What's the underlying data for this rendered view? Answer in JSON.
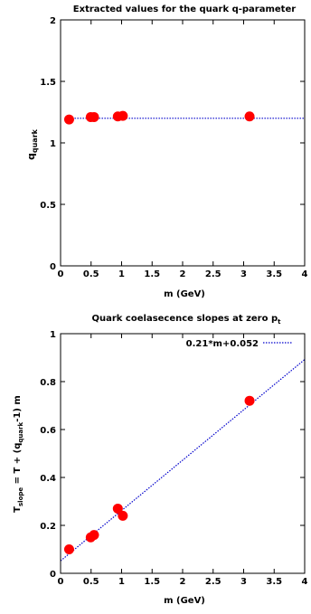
{
  "chart_data": [
    {
      "type": "scatter",
      "title": "Extracted values for the quark q-parameter",
      "xlabel": "m (GeV)",
      "ylabel_base": "q",
      "ylabel_sub": "quark",
      "xlim": [
        0,
        4
      ],
      "ylim": [
        0,
        2
      ],
      "xticks": [
        0,
        0.5,
        1,
        1.5,
        2,
        2.5,
        3,
        3.5,
        4
      ],
      "xtick_labels": [
        "0",
        "0.5",
        "1",
        "1.5",
        "2",
        "2.5",
        "3",
        "3.5",
        "4"
      ],
      "yticks": [
        0,
        0.5,
        1,
        1.5,
        2
      ],
      "ytick_labels": [
        "0",
        "0.5",
        "1",
        "1.5",
        "2"
      ],
      "grid": false,
      "points": [
        {
          "x": 0.14,
          "y": 1.19
        },
        {
          "x": 0.494,
          "y": 1.21
        },
        {
          "x": 0.548,
          "y": 1.21
        },
        {
          "x": 0.938,
          "y": 1.215
        },
        {
          "x": 1.02,
          "y": 1.22
        },
        {
          "x": 3.097,
          "y": 1.215
        }
      ],
      "reference_line": {
        "y": 1.2,
        "style": "dotted"
      },
      "colors": {
        "points": "#ff0000",
        "line": "#0000cc"
      }
    },
    {
      "type": "scatter",
      "title_base": "Quark coelasecence slopes at zero p",
      "title_sub": "t",
      "xlabel": "m (GeV)",
      "ylabel_parts": [
        "T",
        "slope",
        " = T + (q",
        "quark",
        "-1) m"
      ],
      "xlim": [
        0,
        4
      ],
      "ylim": [
        0,
        1
      ],
      "xticks": [
        0,
        0.5,
        1,
        1.5,
        2,
        2.5,
        3,
        3.5,
        4
      ],
      "xtick_labels": [
        "0",
        "0.5",
        "1",
        "1.5",
        "2",
        "2.5",
        "3",
        "3.5",
        "4"
      ],
      "yticks": [
        0,
        0.2,
        0.4,
        0.6,
        0.8,
        1
      ],
      "ytick_labels": [
        "0",
        "0.2",
        "0.4",
        "0.6",
        "0.8",
        "1"
      ],
      "grid": false,
      "legend": {
        "label": "0.21*m+0.052",
        "placement": "top-right"
      },
      "points": [
        {
          "x": 0.14,
          "y": 0.1
        },
        {
          "x": 0.494,
          "y": 0.15
        },
        {
          "x": 0.548,
          "y": 0.16
        },
        {
          "x": 0.938,
          "y": 0.27
        },
        {
          "x": 1.02,
          "y": 0.24
        },
        {
          "x": 3.097,
          "y": 0.72
        }
      ],
      "fit_line": {
        "slope": 0.21,
        "intercept": 0.052,
        "style": "dotted"
      },
      "colors": {
        "points": "#ff0000",
        "line": "#0000cc"
      }
    }
  ]
}
